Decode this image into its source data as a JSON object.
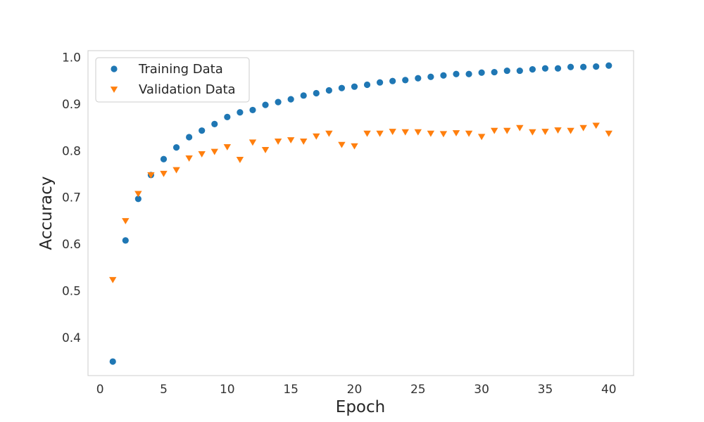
{
  "chart_data": {
    "type": "scatter",
    "title": "",
    "xlabel": "Epoch",
    "ylabel": "Accuracy",
    "xlim": [
      -0.95,
      41.95
    ],
    "ylim": [
      0.319,
      1.014
    ],
    "xticks": [
      0,
      5,
      10,
      15,
      20,
      25,
      30,
      35,
      40
    ],
    "yticks": [
      0.4,
      0.5,
      0.6,
      0.7,
      0.8,
      0.9,
      1.0
    ],
    "xtick_labels": [
      "0",
      "5",
      "10",
      "15",
      "20",
      "25",
      "30",
      "35",
      "40"
    ],
    "ytick_labels": [
      "0.4",
      "0.5",
      "0.6",
      "0.7",
      "0.8",
      "0.9",
      "1.0"
    ],
    "grid": true,
    "legend_position": "upper-left",
    "series": [
      {
        "name": "Training Data",
        "marker": "circle",
        "color": "#1f77b4",
        "x": [
          1,
          2,
          3,
          4,
          5,
          6,
          7,
          8,
          9,
          10,
          11,
          12,
          13,
          14,
          15,
          16,
          17,
          18,
          19,
          20,
          21,
          22,
          23,
          24,
          25,
          26,
          27,
          28,
          29,
          30,
          31,
          32,
          33,
          34,
          35,
          36,
          37,
          38,
          39,
          40
        ],
        "y": [
          0.349,
          0.608,
          0.697,
          0.748,
          0.782,
          0.807,
          0.829,
          0.843,
          0.857,
          0.872,
          0.882,
          0.887,
          0.898,
          0.904,
          0.91,
          0.918,
          0.923,
          0.929,
          0.934,
          0.937,
          0.941,
          0.946,
          0.949,
          0.951,
          0.955,
          0.958,
          0.961,
          0.964,
          0.964,
          0.967,
          0.968,
          0.971,
          0.971,
          0.974,
          0.976,
          0.976,
          0.979,
          0.979,
          0.98,
          0.982
        ]
      },
      {
        "name": "Validation Data",
        "marker": "triangle-down",
        "color": "#ff7f0e",
        "x": [
          1,
          2,
          3,
          4,
          5,
          6,
          7,
          8,
          9,
          10,
          11,
          12,
          13,
          14,
          15,
          16,
          17,
          18,
          19,
          20,
          21,
          22,
          23,
          24,
          25,
          26,
          27,
          28,
          29,
          30,
          31,
          32,
          33,
          34,
          35,
          36,
          37,
          38,
          39,
          40
        ],
        "y": [
          0.524,
          0.65,
          0.708,
          0.748,
          0.751,
          0.759,
          0.784,
          0.793,
          0.798,
          0.808,
          0.781,
          0.818,
          0.802,
          0.82,
          0.823,
          0.82,
          0.831,
          0.837,
          0.813,
          0.81,
          0.837,
          0.837,
          0.841,
          0.84,
          0.84,
          0.837,
          0.836,
          0.838,
          0.837,
          0.83,
          0.843,
          0.843,
          0.849,
          0.84,
          0.841,
          0.844,
          0.843,
          0.849,
          0.854,
          0.837
        ]
      }
    ]
  }
}
